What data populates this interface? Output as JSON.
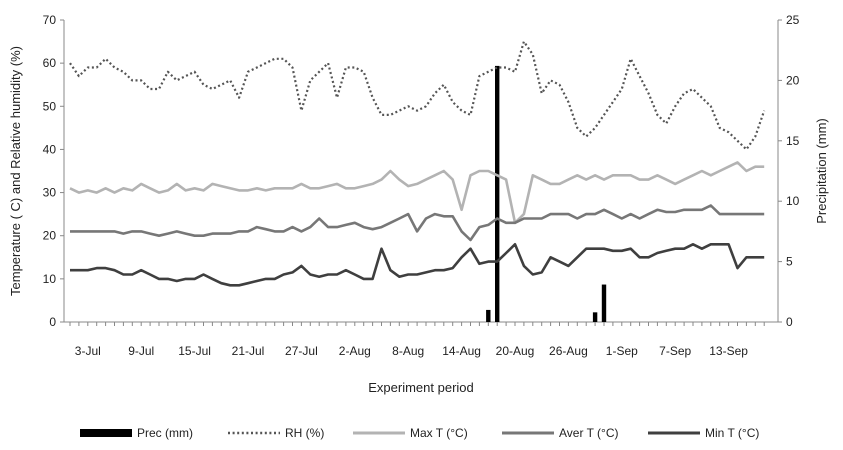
{
  "chart_data": {
    "type": "line",
    "xlabel": "Experiment period",
    "ylabel_left": "Temperature ( C) and Relative humidity (%)",
    "ylabel_right": "Precipitation (mm)",
    "ylim_left": [
      0,
      70
    ],
    "ylim_right": [
      0,
      25
    ],
    "yticks_left": [
      "0",
      "10",
      "20",
      "30",
      "40",
      "50",
      "60",
      "70"
    ],
    "yticks_right": [
      "0",
      "5",
      "10",
      "15",
      "20",
      "25"
    ],
    "grid": false,
    "legend_position": "bottom",
    "start_date": "2017-07-01",
    "x_ticks": [
      {
        "day": 2,
        "label": "3-Jul"
      },
      {
        "day": 8,
        "label": "9-Jul"
      },
      {
        "day": 14,
        "label": "15-Jul"
      },
      {
        "day": 20,
        "label": "21-Jul"
      },
      {
        "day": 26,
        "label": "27-Jul"
      },
      {
        "day": 32,
        "label": "2-Aug"
      },
      {
        "day": 38,
        "label": "8-Aug"
      },
      {
        "day": 44,
        "label": "14-Aug"
      },
      {
        "day": 50,
        "label": "20-Aug"
      },
      {
        "day": 56,
        "label": "26-Aug"
      },
      {
        "day": 62,
        "label": "1-Sep"
      },
      {
        "day": 68,
        "label": "7-Sep"
      },
      {
        "day": 74,
        "label": "13-Sep"
      }
    ],
    "series": [
      {
        "name": "Prec (mm)",
        "kind": "bar",
        "axis": "right",
        "color": "#000000",
        "points": [
          [
            47,
            1.0
          ],
          [
            48,
            21.2
          ],
          [
            59,
            0.8
          ],
          [
            60,
            3.1
          ]
        ]
      },
      {
        "name": "RH (%)",
        "kind": "line",
        "axis": "left",
        "color": "#555555",
        "dash": "dotted",
        "values": [
          60,
          57,
          59,
          59,
          61,
          59,
          58,
          56,
          56,
          54,
          54,
          58,
          56,
          57,
          58,
          55,
          54,
          55,
          56,
          52,
          58,
          59,
          60,
          61,
          61,
          59,
          49,
          56,
          58,
          60,
          52,
          59,
          59,
          58,
          52,
          48,
          48,
          49,
          50,
          49,
          50,
          53,
          55,
          51,
          49,
          48,
          57,
          58,
          59,
          59,
          58,
          65,
          62,
          53,
          56,
          55,
          51,
          45,
          43,
          45,
          48,
          51,
          54,
          61,
          57,
          53,
          48,
          46,
          50,
          53,
          54,
          52,
          50,
          45,
          44,
          42,
          40,
          43,
          49
        ]
      },
      {
        "name": "Max T (°C)",
        "kind": "line",
        "axis": "left",
        "color": "#b3b3b3",
        "values": [
          31,
          30,
          30.5,
          30,
          31,
          30,
          31,
          30.5,
          32,
          31,
          30,
          30.5,
          32,
          30.5,
          31,
          30.5,
          32,
          31.5,
          31,
          30.5,
          30.5,
          31,
          30.5,
          31,
          31,
          31,
          32,
          31,
          31,
          31.5,
          32,
          31,
          31,
          31.5,
          32,
          33,
          35,
          33,
          31.5,
          32,
          33,
          34,
          35,
          33,
          26,
          34,
          35,
          35,
          34,
          33,
          23,
          25,
          34,
          33,
          32,
          32,
          33,
          34,
          33,
          34,
          33,
          34,
          34,
          34,
          33,
          33,
          34,
          33,
          32,
          33,
          34,
          35,
          34,
          35,
          36,
          37,
          35,
          36,
          36
        ]
      },
      {
        "name": "Aver T (°C)",
        "kind": "line",
        "axis": "left",
        "color": "#777777",
        "values": [
          21,
          21,
          21,
          21,
          21,
          21,
          20.5,
          21,
          21,
          20.5,
          20,
          20.5,
          21,
          20.5,
          20,
          20,
          20.5,
          20.5,
          20.5,
          21,
          21,
          22,
          21.5,
          21,
          21,
          22,
          21,
          22,
          24,
          22,
          22,
          22.5,
          23,
          22,
          21.5,
          22,
          23,
          24,
          25,
          21,
          24,
          25,
          24.5,
          24.5,
          21,
          19,
          22,
          22.5,
          24,
          23,
          23,
          24,
          24,
          24,
          25,
          25,
          25,
          24,
          25,
          25,
          26,
          25,
          24,
          25,
          24,
          25,
          26,
          25.5,
          25.5,
          26,
          26,
          26,
          27,
          25,
          25,
          25,
          25,
          25,
          25
        ]
      },
      {
        "name": "Min T (°C)",
        "kind": "line",
        "axis": "left",
        "color": "#3f3f3f",
        "values": [
          12,
          12,
          12,
          12.5,
          12.5,
          12,
          11,
          11,
          12,
          11,
          10,
          10,
          9.5,
          10,
          10,
          11,
          10,
          9,
          8.5,
          8.5,
          9,
          9.5,
          10,
          10,
          11,
          11.5,
          13,
          11,
          10.5,
          11,
          11,
          12,
          11,
          10,
          10,
          17,
          12,
          10.5,
          11,
          11,
          11.5,
          12,
          12,
          12.5,
          15,
          17,
          13.5,
          14,
          14,
          16,
          18,
          13,
          11,
          11.5,
          15,
          14,
          13,
          15,
          17,
          17,
          17,
          16.5,
          16.5,
          17,
          15,
          15,
          16,
          16.5,
          17,
          17,
          18,
          17,
          18,
          18,
          18,
          12.5,
          15,
          15,
          15
        ]
      }
    ]
  }
}
